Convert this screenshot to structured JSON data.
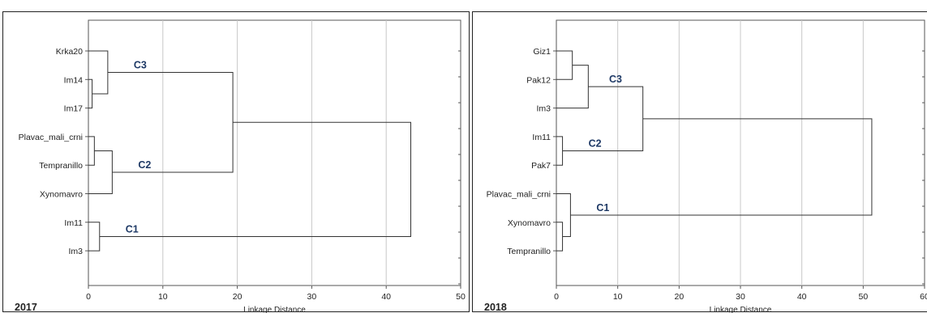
{
  "chart_data": [
    {
      "type": "dendrogram",
      "year": "2017",
      "xlabel": "Linkage Distance",
      "xlim": [
        0,
        50
      ],
      "xticks": [
        "0",
        "10",
        "20",
        "30",
        "40",
        "50"
      ],
      "leaves": [
        "Krka20",
        "Im14",
        "Im17",
        "Plavac_mali_crni",
        "Tempranillo",
        "Xynomavro",
        "Im11",
        "Im3"
      ],
      "merges": [
        {
          "a": 1,
          "b": 2,
          "height": 0.5
        },
        {
          "a": 3,
          "b": 4,
          "height": 0.8
        },
        {
          "a": 6,
          "b": 7,
          "height": 1.5
        },
        {
          "a": 0,
          "b": 8,
          "height": 2.6
        },
        {
          "a": 9,
          "b": 5,
          "height": 3.2
        },
        {
          "a": 11,
          "b": 12,
          "height": 19.4
        },
        {
          "a": 13,
          "b": 10,
          "height": 43.3
        }
      ],
      "clusters": [
        {
          "label": "C3",
          "node": 11
        },
        {
          "label": "C2",
          "node": 12
        },
        {
          "label": "C1",
          "node": 10
        }
      ]
    },
    {
      "type": "dendrogram",
      "year": "2018",
      "xlabel": "Linkage Distance",
      "xlim": [
        0,
        60
      ],
      "xticks": [
        "0",
        "10",
        "20",
        "30",
        "40",
        "50",
        "60"
      ],
      "leaves": [
        "Giz1",
        "Pak12",
        "Im3",
        "Im11",
        "Pak7",
        "Plavac_mali_crni",
        "Xynomavro",
        "Tempranillo"
      ],
      "merges": [
        {
          "a": 0,
          "b": 1,
          "height": 2.6
        },
        {
          "a": 6,
          "b": 7,
          "height": 1.0
        },
        {
          "a": 3,
          "b": 4,
          "height": 1.0
        },
        {
          "a": 5,
          "b": 9,
          "height": 2.3
        },
        {
          "a": 8,
          "b": 2,
          "height": 5.2
        },
        {
          "a": 12,
          "b": 10,
          "height": 14.1
        },
        {
          "a": 13,
          "b": 11,
          "height": 51.4
        }
      ],
      "clusters": [
        {
          "label": "C3",
          "node": 12
        },
        {
          "label": "C2",
          "node": 10
        },
        {
          "label": "C1",
          "node": 11
        }
      ]
    }
  ]
}
